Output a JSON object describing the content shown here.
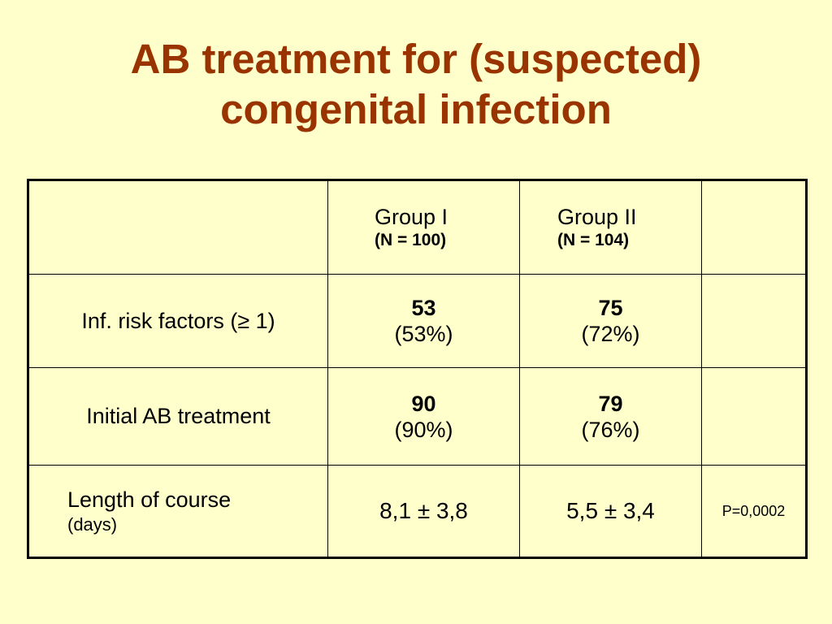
{
  "slide": {
    "title_line1": "AB treatment for (suspected)",
    "title_line2": "congenital infection"
  },
  "table": {
    "header": {
      "corner": "",
      "group1_name": "Group I",
      "group1_n": "(N = 100)",
      "group2_name": "Group II",
      "group2_n": "(N = 104)",
      "p_header": ""
    },
    "rows": [
      {
        "label": "Inf. risk factors (≥ 1)",
        "group1_value": "53",
        "group1_pct": "(53%)",
        "group2_value": "75",
        "group2_pct": "(72%)",
        "p_value": ""
      },
      {
        "label": "Initial AB treatment",
        "group1_value": "90",
        "group1_pct": "(90%)",
        "group2_value": "79",
        "group2_pct": "(76%)",
        "p_value": ""
      },
      {
        "label": "Length of course",
        "sublabel": "(days)",
        "group1_value": "8,1 ± 3,8",
        "group2_value": "5,5 ± 3,4",
        "p_value": "P=0,0002"
      }
    ]
  },
  "colors": {
    "background": "#ffffcc",
    "title": "#993300",
    "border": "#000000"
  }
}
